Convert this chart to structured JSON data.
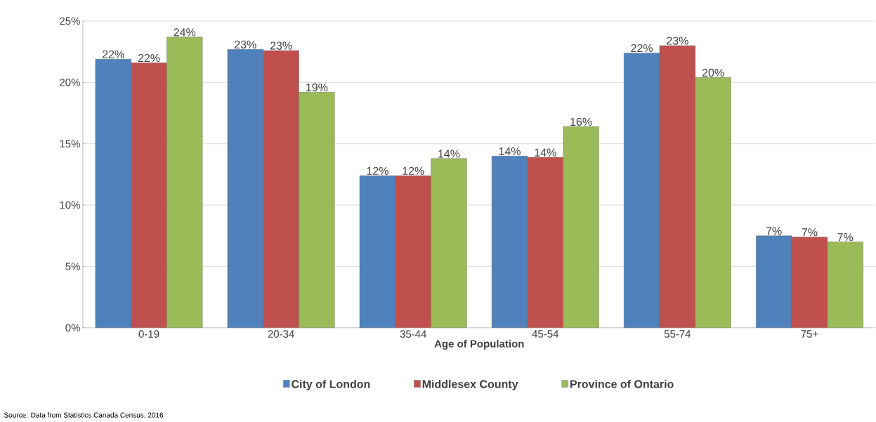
{
  "chart_data": {
    "type": "bar",
    "categories": [
      "0-19",
      "20-34",
      "35-44",
      "45-54",
      "55-74",
      "75+"
    ],
    "series": [
      {
        "name": "City of London",
        "color": "#4f81bd",
        "values": [
          21.9,
          22.7,
          12.4,
          14.0,
          22.4,
          7.5
        ],
        "value_labels": [
          "22%",
          "23%",
          "12%",
          "14%",
          "22%",
          "7%"
        ]
      },
      {
        "name": "Middlesex County",
        "color": "#c0504d",
        "values": [
          21.6,
          22.6,
          12.4,
          13.9,
          23.0,
          7.4
        ],
        "value_labels": [
          "22%",
          "23%",
          "12%",
          "14%",
          "23%",
          "7%"
        ]
      },
      {
        "name": "Province of Ontario",
        "color": "#9bbb59",
        "values": [
          23.7,
          19.2,
          13.8,
          16.4,
          20.4,
          7.0
        ],
        "value_labels": [
          "24%",
          "19%",
          "14%",
          "16%",
          "20%",
          "7%"
        ]
      }
    ],
    "xlabel": "Age of Population",
    "ylim": [
      0,
      25
    ],
    "yticks": [
      {
        "value": 0,
        "label": "0%"
      },
      {
        "value": 5,
        "label": "5%"
      },
      {
        "value": 10,
        "label": "10%"
      },
      {
        "value": 15,
        "label": "15%"
      },
      {
        "value": 20,
        "label": "20%"
      },
      {
        "value": 25,
        "label": "25%"
      }
    ],
    "grid": "y",
    "legend": "bottom",
    "annotations": [
      "Source: Data from Statistics Canada Census, 2016"
    ]
  }
}
